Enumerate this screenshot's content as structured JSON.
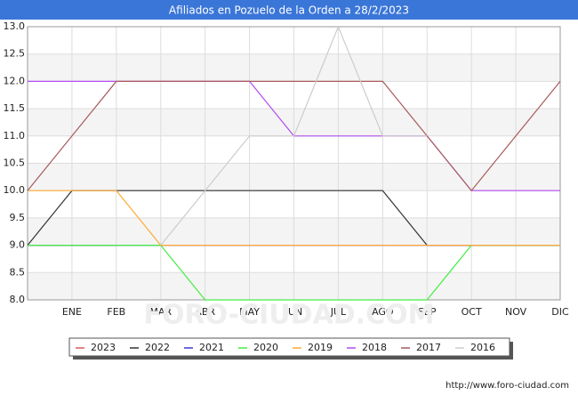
{
  "chart_data": {
    "type": "line",
    "title": "Afiliados en Pozuelo de la Orden a 28/2/2023",
    "categories": [
      null,
      "ENE",
      "FEB",
      "MAR",
      "ABR",
      "MAY",
      "JUN",
      "JUL",
      "AGO",
      "SEP",
      "OCT",
      "NOV",
      "DIC"
    ],
    "series": [
      {
        "name": "2023",
        "color": "#e05a5a",
        "values": [
          9,
          9,
          9,
          null,
          null,
          null,
          null,
          null,
          null,
          null,
          null,
          null,
          null
        ]
      },
      {
        "name": "2022",
        "color": "#333333",
        "values": [
          9,
          10,
          10,
          10,
          10,
          10,
          10,
          10,
          10,
          9,
          9,
          9,
          9
        ]
      },
      {
        "name": "2021",
        "color": "#3a3adb",
        "values": [
          9,
          9,
          9,
          9,
          9,
          9,
          9,
          9,
          9,
          9,
          9,
          9,
          9
        ]
      },
      {
        "name": "2020",
        "color": "#44ee44",
        "values": [
          9,
          9,
          9,
          9,
          8,
          8,
          8,
          8,
          8,
          8,
          9,
          9,
          9
        ]
      },
      {
        "name": "2019",
        "color": "#ffaa33",
        "values": [
          10,
          10,
          10,
          9,
          9,
          9,
          9,
          9,
          9,
          9,
          9,
          9,
          9
        ]
      },
      {
        "name": "2018",
        "color": "#b34cf0",
        "values": [
          12,
          12,
          12,
          12,
          12,
          12,
          11,
          11,
          11,
          11,
          10,
          10,
          10
        ]
      },
      {
        "name": "2017",
        "color": "#a85a5a",
        "values": [
          10,
          11,
          12,
          12,
          12,
          12,
          12,
          12,
          12,
          11,
          10,
          11,
          12
        ]
      },
      {
        "name": "2016",
        "color": "#cccccc",
        "values": [
          null,
          null,
          null,
          9,
          10,
          11,
          11,
          13,
          11,
          11,
          null,
          null,
          null
        ]
      }
    ],
    "ylim": [
      8,
      13
    ],
    "yticks": [
      {
        "value": 8,
        "label": "8.0"
      },
      8.5,
      {
        "value": 9,
        "label": "9.0"
      },
      9.5,
      {
        "value": 10,
        "label": "10.0"
      },
      10.5,
      {
        "value": 11,
        "label": "11.0"
      },
      11.5,
      {
        "value": 12,
        "label": "12.0"
      },
      12.5,
      {
        "value": 13,
        "label": "13.0"
      }
    ],
    "grid": true,
    "legend": "bottom",
    "watermark": "FORO-CIUDAD.COM",
    "source": "http://www.foro-ciudad.com"
  }
}
